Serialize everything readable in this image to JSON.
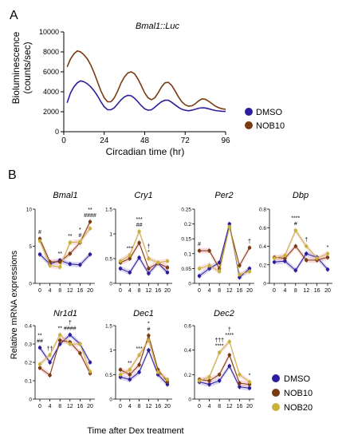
{
  "panel_labels": {
    "a": "A",
    "b": "B"
  },
  "colors": {
    "dmso": "#2b1d9c",
    "nob10": "#7a3a12",
    "nob20": "#c8b23a",
    "band_dmso": "#b9b4e3",
    "band_nob10": "#f2b8b8",
    "band_nob20": "#f5c9cc"
  },
  "panel_a": {
    "title": "Bmal1::Luc",
    "ylabel_line1": "Bioluminescence",
    "ylabel_line2": "(counts/sec)",
    "xlabel": "Circadian time (hr)",
    "legend": [
      "DMSO",
      "NOB10"
    ]
  },
  "panel_b": {
    "ylabel": "Relative mRNA expressions",
    "xlabel": "Time after Dex treatment",
    "legend": [
      "DMSO",
      "NOB10",
      "NOB20"
    ]
  },
  "chart_data": [
    {
      "type": "line",
      "title": "Bmal1::Luc",
      "xlabel": "Circadian time (hr)",
      "ylabel": "Bioluminescence (counts/sec)",
      "xlim": [
        0,
        96
      ],
      "ylim": [
        0,
        10000
      ],
      "xticks": [
        0,
        24,
        48,
        72,
        96
      ],
      "yticks": [
        0,
        2000,
        4000,
        6000,
        8000,
        10000
      ],
      "legend_position": "right",
      "series": [
        {
          "name": "DMSO",
          "x": [
            2,
            4,
            6,
            8,
            10,
            12,
            14,
            16,
            18,
            20,
            22,
            24,
            26,
            28,
            30,
            32,
            34,
            36,
            38,
            40,
            42,
            44,
            46,
            48,
            50,
            52,
            54,
            56,
            58,
            60,
            62,
            64,
            66,
            68,
            70,
            72,
            74,
            76,
            78,
            80,
            82,
            84,
            86,
            88,
            90,
            92,
            94,
            96
          ],
          "y": [
            2900,
            3900,
            4500,
            4900,
            5100,
            5000,
            4800,
            4500,
            4100,
            3600,
            3000,
            2500,
            2200,
            2200,
            2400,
            2800,
            3200,
            3500,
            3650,
            3600,
            3350,
            3000,
            2600,
            2300,
            2150,
            2200,
            2450,
            2750,
            3000,
            3150,
            3150,
            2950,
            2700,
            2450,
            2250,
            2150,
            2100,
            2150,
            2250,
            2350,
            2400,
            2380,
            2300,
            2200,
            2120,
            2080,
            2050,
            2030
          ]
        },
        {
          "name": "NOB10",
          "x": [
            2,
            4,
            6,
            8,
            10,
            12,
            14,
            16,
            18,
            20,
            22,
            24,
            26,
            28,
            30,
            32,
            34,
            36,
            38,
            40,
            42,
            44,
            46,
            48,
            50,
            52,
            54,
            56,
            58,
            60,
            62,
            64,
            66,
            68,
            70,
            72,
            74,
            76,
            78,
            80,
            82,
            84,
            86,
            88,
            90,
            92,
            94,
            96
          ],
          "y": [
            6500,
            7300,
            7800,
            8100,
            8000,
            7700,
            7300,
            6700,
            5900,
            5000,
            4100,
            3400,
            3000,
            3000,
            3400,
            4100,
            4900,
            5500,
            5900,
            6000,
            5800,
            5300,
            4600,
            3900,
            3400,
            3200,
            3400,
            3900,
            4500,
            4900,
            4950,
            4650,
            4100,
            3500,
            3000,
            2700,
            2550,
            2600,
            2800,
            3100,
            3300,
            3250,
            3050,
            2800,
            2550,
            2400,
            2300,
            2250
          ]
        }
      ]
    },
    {
      "type": "line",
      "title": "Bmal1",
      "x": [
        0,
        4,
        8,
        12,
        16,
        20
      ],
      "ylim": [
        0,
        10
      ],
      "yticks": [
        0,
        5,
        10
      ],
      "series": [
        {
          "name": "DMSO",
          "values": [
            3.9,
            2.6,
            3.1,
            2.6,
            2.5,
            3.9
          ]
        },
        {
          "name": "NOB10",
          "values": [
            6.0,
            2.9,
            2.9,
            4.0,
            5.5,
            8.3
          ]
        },
        {
          "name": "NOB20",
          "values": [
            5.7,
            2.4,
            2.2,
            5.5,
            5.6,
            7.4
          ]
        }
      ],
      "annotations": [
        {
          "x": 0,
          "text": "#"
        },
        {
          "x": 8,
          "text": "**"
        },
        {
          "x": 12,
          "text": "**"
        },
        {
          "x": 16,
          "text": "#"
        },
        {
          "x": 16,
          "text": "*"
        },
        {
          "x": 20,
          "text": "####"
        },
        {
          "x": 20,
          "text": "**"
        }
      ]
    },
    {
      "type": "line",
      "title": "Cry1",
      "x": [
        0,
        4,
        8,
        12,
        16,
        20
      ],
      "ylim": [
        0,
        1.5
      ],
      "yticks": [
        0,
        0.5,
        1.0,
        1.5
      ],
      "series": [
        {
          "name": "DMSO",
          "values": [
            0.3,
            0.22,
            0.52,
            0.2,
            0.41,
            0.22
          ]
        },
        {
          "name": "NOB10",
          "values": [
            0.42,
            0.5,
            0.82,
            0.3,
            0.41,
            0.32
          ]
        },
        {
          "name": "NOB20",
          "values": [
            0.45,
            0.57,
            1.05,
            0.5,
            0.42,
            0.45
          ]
        }
      ],
      "annotations": [
        {
          "x": 4,
          "text": "***"
        },
        {
          "x": 8,
          "text": "##"
        },
        {
          "x": 8,
          "text": "***"
        },
        {
          "x": 12,
          "text": "*"
        },
        {
          "x": 12,
          "text": "†"
        }
      ]
    },
    {
      "type": "line",
      "title": "Per2",
      "x": [
        0,
        4,
        8,
        12,
        16,
        20
      ],
      "ylim": [
        0,
        0.25
      ],
      "yticks": [
        0,
        0.05,
        0.1,
        0.15,
        0.2,
        0.25
      ],
      "series": [
        {
          "name": "DMSO",
          "values": [
            0.025,
            0.05,
            0.07,
            0.2,
            0.02,
            0.05
          ]
        },
        {
          "name": "NOB10",
          "values": [
            0.11,
            0.11,
            0.05,
            0.19,
            0.06,
            0.12
          ]
        },
        {
          "name": "NOB20",
          "values": [
            0.05,
            0.06,
            0.04,
            0.19,
            0.03,
            0.04
          ]
        }
      ],
      "annotations": [
        {
          "x": 0,
          "text": "#"
        },
        {
          "x": 20,
          "text": "†"
        }
      ]
    },
    {
      "type": "line",
      "title": "Dbp",
      "x": [
        0,
        4,
        8,
        12,
        16,
        20
      ],
      "ylim": [
        0,
        0.8
      ],
      "yticks": [
        0,
        0.2,
        0.4,
        0.6,
        0.8
      ],
      "series": [
        {
          "name": "DMSO",
          "values": [
            0.23,
            0.24,
            0.14,
            0.32,
            0.28,
            0.15
          ]
        },
        {
          "name": "NOB10",
          "values": [
            0.28,
            0.27,
            0.4,
            0.25,
            0.25,
            0.28
          ]
        },
        {
          "name": "NOB20",
          "values": [
            0.27,
            0.3,
            0.57,
            0.4,
            0.27,
            0.32
          ]
        }
      ],
      "annotations": [
        {
          "x": 8,
          "text": "#"
        },
        {
          "x": 8,
          "text": "****"
        },
        {
          "x": 12,
          "text": "†"
        },
        {
          "x": 20,
          "text": "*"
        }
      ]
    },
    {
      "type": "line",
      "title": "Nr1d1",
      "x": [
        0,
        4,
        8,
        12,
        16,
        20
      ],
      "ylim": [
        0,
        0.4
      ],
      "yticks": [
        0,
        0.1,
        0.2,
        0.3,
        0.4
      ],
      "series": [
        {
          "name": "DMSO",
          "values": [
            0.28,
            0.2,
            0.3,
            0.35,
            0.3,
            0.2
          ]
        },
        {
          "name": "NOB10",
          "values": [
            0.17,
            0.13,
            0.32,
            0.31,
            0.25,
            0.14
          ]
        },
        {
          "name": "NOB20",
          "values": [
            0.19,
            0.24,
            0.35,
            0.3,
            0.3,
            0.15
          ]
        }
      ],
      "annotations": [
        {
          "x": 0,
          "text": "##"
        },
        {
          "x": 0,
          "text": "**"
        },
        {
          "x": 4,
          "text": "††"
        },
        {
          "x": 8,
          "text": "**"
        },
        {
          "x": 12,
          "text": "####"
        },
        {
          "x": 12,
          "text": "†"
        }
      ]
    },
    {
      "type": "line",
      "title": "Dec1",
      "x": [
        0,
        4,
        8,
        12,
        16,
        20
      ],
      "ylim": [
        0,
        1.5
      ],
      "yticks": [
        0,
        0.5,
        1.0,
        1.5
      ],
      "series": [
        {
          "name": "DMSO",
          "values": [
            0.45,
            0.4,
            0.55,
            1.0,
            0.5,
            0.3
          ]
        },
        {
          "name": "NOB10",
          "values": [
            0.6,
            0.5,
            0.7,
            1.3,
            0.6,
            0.35
          ]
        },
        {
          "name": "NOB20",
          "values": [
            0.5,
            0.6,
            0.9,
            1.2,
            0.55,
            0.4
          ]
        }
      ],
      "annotations": [
        {
          "x": 4,
          "text": "**"
        },
        {
          "x": 8,
          "text": "***"
        },
        {
          "x": 12,
          "text": "#"
        },
        {
          "x": 12,
          "text": "*"
        }
      ]
    },
    {
      "type": "line",
      "title": "Dec2",
      "x": [
        0,
        4,
        8,
        12,
        16,
        20
      ],
      "ylim": [
        0,
        0.6
      ],
      "yticks": [
        0,
        0.2,
        0.4,
        0.6
      ],
      "series": [
        {
          "name": "DMSO",
          "values": [
            0.14,
            0.12,
            0.15,
            0.27,
            0.1,
            0.09
          ]
        },
        {
          "name": "NOB10",
          "values": [
            0.16,
            0.15,
            0.2,
            0.36,
            0.13,
            0.12
          ]
        },
        {
          "name": "NOB20",
          "values": [
            0.15,
            0.18,
            0.38,
            0.47,
            0.2,
            0.14
          ]
        }
      ],
      "annotations": [
        {
          "x": 8,
          "text": "****"
        },
        {
          "x": 8,
          "text": "†††"
        },
        {
          "x": 12,
          "text": "****"
        },
        {
          "x": 12,
          "text": "†"
        },
        {
          "x": 20,
          "text": "*"
        }
      ]
    }
  ]
}
